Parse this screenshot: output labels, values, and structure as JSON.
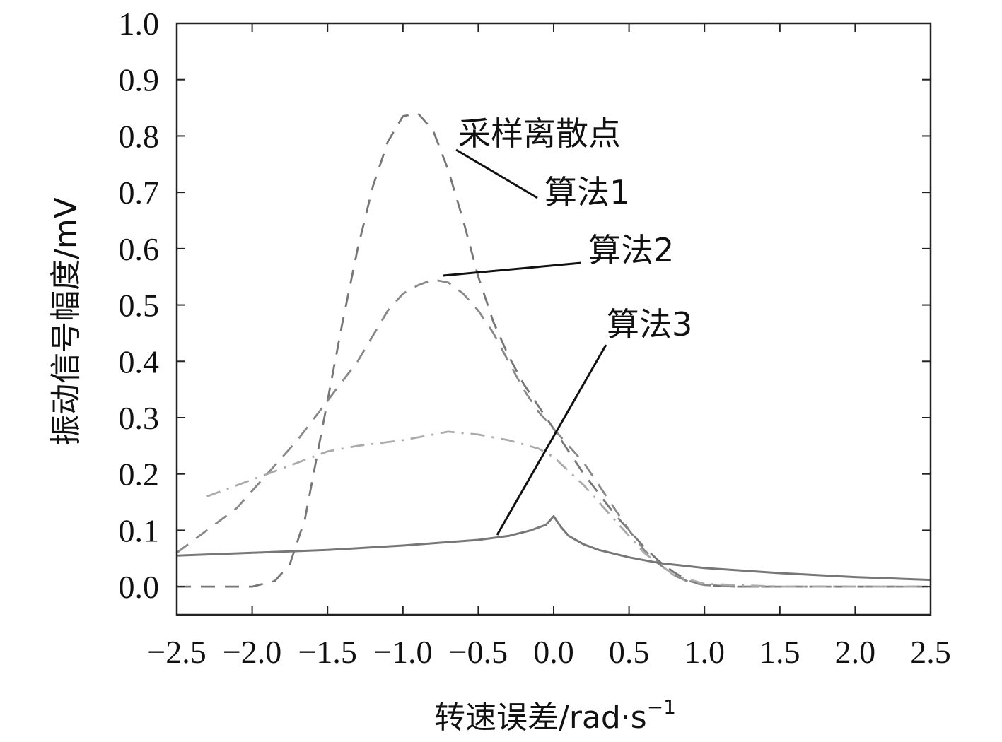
{
  "chart_data": {
    "type": "line",
    "title": "",
    "xlabel": "转速误差/rad·s",
    "xlabel_sup": "−1",
    "ylabel": "振动信号幅度/mV",
    "xlim": [
      -2.5,
      2.5
    ],
    "ylim": [
      -0.05,
      1.0
    ],
    "xticks": [
      "−2.5",
      "−2.0",
      "−1.5",
      "−1.0",
      "−0.5",
      "0.0",
      "0.5",
      "1.0",
      "1.5",
      "2.0",
      "2.5"
    ],
    "yticks": [
      "0.0",
      "0.1",
      "0.2",
      "0.3",
      "0.4",
      "0.5",
      "0.6",
      "0.7",
      "0.8",
      "0.9",
      "1.0"
    ],
    "grid": false,
    "annotations": [
      {
        "text": "采样离散点"
      },
      {
        "text": "算法1"
      },
      {
        "text": "算法2"
      },
      {
        "text": "算法3"
      }
    ],
    "series": [
      {
        "style": "dashed",
        "color": "#777777",
        "x": [
          -2.5,
          -2.0,
          -1.85,
          -1.75,
          -1.65,
          -1.5,
          -1.4,
          -1.3,
          -1.2,
          -1.1,
          -1.0,
          -0.9,
          -0.8,
          -0.7,
          -0.6,
          -0.5,
          -0.4,
          -0.3,
          -0.2,
          -0.1,
          0.0,
          0.1,
          0.2,
          0.3,
          0.4,
          0.5,
          0.6,
          0.7,
          0.8,
          0.9,
          1.0,
          1.2,
          1.5,
          2.0,
          2.5
        ],
        "y": [
          0.0,
          0.0,
          0.01,
          0.04,
          0.12,
          0.33,
          0.47,
          0.6,
          0.71,
          0.79,
          0.835,
          0.84,
          0.81,
          0.74,
          0.65,
          0.55,
          0.47,
          0.41,
          0.36,
          0.32,
          0.28,
          0.24,
          0.2,
          0.165,
          0.13,
          0.1,
          0.07,
          0.045,
          0.025,
          0.01,
          0.003,
          0.0,
          0.0,
          0.0,
          0.0
        ]
      },
      {
        "style": "dashed",
        "color": "#888888",
        "x": [
          -2.5,
          -2.3,
          -2.1,
          -1.9,
          -1.7,
          -1.5,
          -1.3,
          -1.1,
          -1.0,
          -0.9,
          -0.8,
          -0.7,
          -0.6,
          -0.5,
          -0.4,
          -0.3,
          -0.2,
          -0.1,
          0.0,
          0.1,
          0.2,
          0.3,
          0.4,
          0.5,
          0.6,
          0.7,
          0.8,
          0.9,
          1.0,
          1.2,
          1.5,
          2.0,
          2.5
        ],
        "y": [
          0.06,
          0.1,
          0.14,
          0.2,
          0.26,
          0.33,
          0.4,
          0.49,
          0.52,
          0.535,
          0.545,
          0.54,
          0.52,
          0.49,
          0.45,
          0.4,
          0.35,
          0.31,
          0.28,
          0.25,
          0.22,
          0.18,
          0.14,
          0.1,
          0.065,
          0.04,
          0.02,
          0.008,
          0.003,
          0.0,
          0.0,
          0.0,
          0.0
        ]
      },
      {
        "style": "dashdot",
        "color": "#aaaaaa",
        "x": [
          -2.3,
          -2.0,
          -1.7,
          -1.5,
          -1.3,
          -1.0,
          -0.9,
          -0.8,
          -0.7,
          -0.5,
          -0.3,
          -0.1,
          0.0,
          0.1,
          0.2,
          0.3,
          0.4,
          0.5,
          0.6,
          0.7,
          0.8,
          1.0,
          1.5,
          2.0,
          2.5
        ],
        "y": [
          0.16,
          0.19,
          0.22,
          0.24,
          0.25,
          0.26,
          0.265,
          0.27,
          0.275,
          0.27,
          0.26,
          0.245,
          0.23,
          0.205,
          0.18,
          0.15,
          0.12,
          0.09,
          0.06,
          0.04,
          0.02,
          0.005,
          0.0,
          0.0,
          0.0
        ]
      },
      {
        "style": "solid",
        "color": "#777777",
        "x": [
          -2.5,
          -2.0,
          -1.5,
          -1.0,
          -0.5,
          -0.3,
          -0.15,
          -0.05,
          0.0,
          0.05,
          0.1,
          0.2,
          0.3,
          0.5,
          0.7,
          1.0,
          1.5,
          2.0,
          2.5
        ],
        "y": [
          0.055,
          0.06,
          0.065,
          0.073,
          0.083,
          0.09,
          0.1,
          0.11,
          0.125,
          0.105,
          0.09,
          0.075,
          0.065,
          0.052,
          0.042,
          0.033,
          0.024,
          0.017,
          0.012
        ]
      }
    ]
  }
}
